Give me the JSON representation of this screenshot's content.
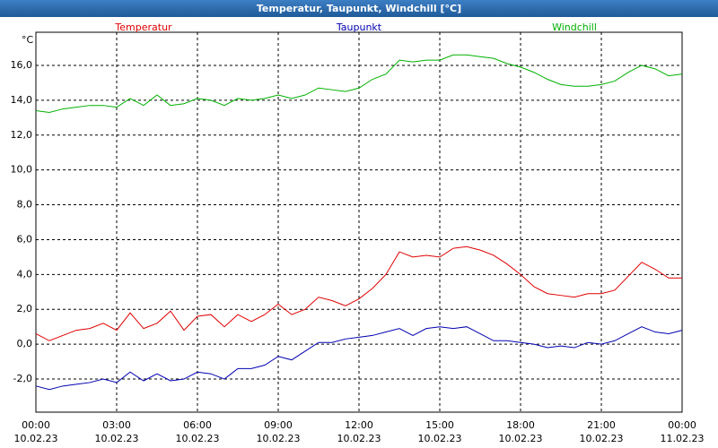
{
  "chart_data": {
    "type": "line",
    "title": "Temperatur, Taupunkt, Windchill [°C]",
    "y_unit": "°C",
    "x": [
      0,
      0.5,
      1,
      1.5,
      2,
      2.5,
      3,
      3.5,
      4,
      4.5,
      5,
      5.5,
      6,
      6.5,
      7,
      7.5,
      8,
      8.5,
      9,
      9.5,
      10,
      10.5,
      11,
      11.5,
      12,
      12.5,
      13,
      13.5,
      14,
      14.5,
      15,
      15.5,
      16,
      16.5,
      17,
      17.5,
      18,
      18.5,
      19,
      19.5,
      20,
      20.5,
      21,
      21.5,
      22,
      22.5,
      23,
      23.5,
      24
    ],
    "series": [
      {
        "name": "Temperatur",
        "color": "#e00000",
        "values": [
          0.6,
          0.2,
          0.5,
          0.8,
          0.9,
          1.2,
          0.8,
          1.8,
          0.9,
          1.2,
          1.9,
          0.8,
          1.6,
          1.7,
          1.0,
          1.7,
          1.3,
          1.7,
          2.3,
          1.7,
          2.0,
          2.7,
          2.5,
          2.2,
          2.6,
          3.2,
          4.0,
          5.3,
          5.0,
          5.1,
          5.0,
          5.5,
          5.6,
          5.4,
          5.1,
          4.6,
          4.0,
          3.3,
          2.9,
          2.8,
          2.7,
          2.9,
          2.9,
          3.1,
          3.9,
          4.7,
          4.3,
          3.8,
          3.8
        ]
      },
      {
        "name": "Taupunkt",
        "color": "#0000b0",
        "values": [
          -2.4,
          -2.6,
          -2.4,
          -2.3,
          -2.2,
          -2.0,
          -2.2,
          -1.6,
          -2.1,
          -1.7,
          -2.1,
          -2.0,
          -1.6,
          -1.7,
          -2.0,
          -1.4,
          -1.4,
          -1.2,
          -0.7,
          -0.9,
          -0.4,
          0.1,
          0.1,
          0.3,
          0.4,
          0.5,
          0.7,
          0.9,
          0.5,
          0.9,
          1.0,
          0.9,
          1.0,
          0.6,
          0.2,
          0.2,
          0.1,
          0.0,
          -0.2,
          -0.1,
          -0.2,
          0.1,
          0.0,
          0.2,
          0.6,
          1.0,
          0.7,
          0.6,
          0.8
        ]
      },
      {
        "name": "Windchill",
        "color": "#00b000",
        "values": [
          13.4,
          13.3,
          13.5,
          13.6,
          13.7,
          13.7,
          13.6,
          14.1,
          13.7,
          14.3,
          13.7,
          13.8,
          14.1,
          14.0,
          13.7,
          14.1,
          14.0,
          14.1,
          14.3,
          14.1,
          14.3,
          14.7,
          14.6,
          14.5,
          14.7,
          15.2,
          15.5,
          16.3,
          16.2,
          16.3,
          16.3,
          16.6,
          16.6,
          16.5,
          16.4,
          16.1,
          15.9,
          15.6,
          15.2,
          14.9,
          14.8,
          14.8,
          14.9,
          15.1,
          15.6,
          16.0,
          15.8,
          15.4,
          15.5
        ]
      }
    ],
    "xlim": [
      0,
      24
    ],
    "xticks": [
      {
        "value": 0,
        "label": "00:00"
      },
      {
        "value": 3,
        "label": "03:00"
      },
      {
        "value": 6,
        "label": "06:00"
      },
      {
        "value": 9,
        "label": "09:00"
      },
      {
        "value": 12,
        "label": "12:00"
      },
      {
        "value": 15,
        "label": "15:00"
      },
      {
        "value": 18,
        "label": "18:00"
      },
      {
        "value": 21,
        "label": "21:00"
      },
      {
        "value": 24,
        "label": "00:00"
      }
    ],
    "xtick_dates": [
      "10.02.23",
      "10.02.23",
      "10.02.23",
      "10.02.23",
      "10.02.23",
      "10.02.23",
      "10.02.23",
      "10.02.23",
      "11.02.23"
    ],
    "ylim": [
      -3.9,
      17.9
    ],
    "yticks": [
      {
        "value": -2,
        "label": "-2,0"
      },
      {
        "value": 0,
        "label": "0,0"
      },
      {
        "value": 2,
        "label": "2,0"
      },
      {
        "value": 4,
        "label": "4,0"
      },
      {
        "value": 6,
        "label": "6,0"
      },
      {
        "value": 8,
        "label": "8,0"
      },
      {
        "value": 10,
        "label": "10,0"
      },
      {
        "value": 12,
        "label": "12,0"
      },
      {
        "value": 14,
        "label": "14,0"
      },
      {
        "value": 16,
        "label": "16,0"
      }
    ],
    "grid": true
  }
}
